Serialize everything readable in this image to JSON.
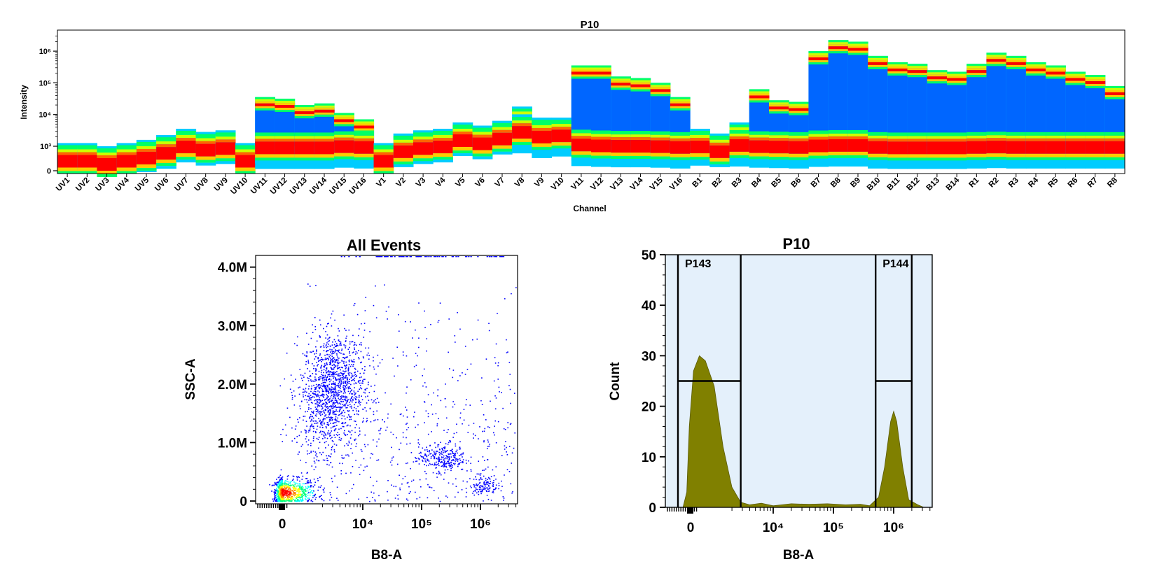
{
  "chart_data": [
    {
      "type": "heatmap",
      "title": "P10",
      "xlabel": "Channel",
      "ylabel": "Intensity",
      "y_ticks": [
        "0",
        "10³",
        "10⁴",
        "10⁵",
        "10⁶"
      ],
      "y_scale": "biexponential",
      "categories": [
        "UV1",
        "UV2",
        "UV3",
        "UV4",
        "UV5",
        "UV6",
        "UV7",
        "UV8",
        "UV9",
        "UV10",
        "UV11",
        "UV12",
        "UV13",
        "UV14",
        "UV15",
        "UV16",
        "V1",
        "V2",
        "V3",
        "V4",
        "V5",
        "V6",
        "V7",
        "V8",
        "V9",
        "V10",
        "V11",
        "V12",
        "V13",
        "V14",
        "V15",
        "V16",
        "B1",
        "B2",
        "B3",
        "B4",
        "B5",
        "B6",
        "B7",
        "B8",
        "B9",
        "B10",
        "B11",
        "B12",
        "B13",
        "B14",
        "R1",
        "R2",
        "R3",
        "R4",
        "R5",
        "R6",
        "R7",
        "R8"
      ],
      "peak_top_log10": [
        3.1,
        3.1,
        3.0,
        3.1,
        3.2,
        3.35,
        3.55,
        3.45,
        3.5,
        3.1,
        4.55,
        4.5,
        4.3,
        4.35,
        4.05,
        3.85,
        3.1,
        3.4,
        3.5,
        3.55,
        3.75,
        3.65,
        3.8,
        4.25,
        3.9,
        3.9,
        5.55,
        5.55,
        5.2,
        5.15,
        5.0,
        4.55,
        3.55,
        3.4,
        3.75,
        4.8,
        4.45,
        4.4,
        6.0,
        6.35,
        6.3,
        5.85,
        5.65,
        5.6,
        5.4,
        5.35,
        5.6,
        5.95,
        5.85,
        5.65,
        5.55,
        5.35,
        5.25,
        4.9
      ],
      "bright_top_log10": [
        2.9,
        2.9,
        2.8,
        2.9,
        3.0,
        3.15,
        3.35,
        3.25,
        3.3,
        2.9,
        4.4,
        4.35,
        4.15,
        4.2,
        3.85,
        3.65,
        2.9,
        3.25,
        3.35,
        3.4,
        3.6,
        3.5,
        3.65,
        4.05,
        3.75,
        3.75,
        5.4,
        5.4,
        5.05,
        5.0,
        4.8,
        4.35,
        3.4,
        3.25,
        3.55,
        4.6,
        4.25,
        4.2,
        5.85,
        6.2,
        6.15,
        5.7,
        5.5,
        5.45,
        5.25,
        5.2,
        5.45,
        5.8,
        5.7,
        5.5,
        5.4,
        5.2,
        5.1,
        4.75
      ],
      "population_level_log10": [
        null,
        null,
        null,
        null,
        null,
        null,
        null,
        null,
        null,
        null,
        3.0,
        3.0,
        3.0,
        3.0,
        3.1,
        3.1,
        null,
        null,
        null,
        null,
        null,
        null,
        null,
        null,
        null,
        null,
        3.2,
        3.1,
        3.0,
        3.0,
        3.0,
        3.1,
        null,
        null,
        null,
        3.05,
        3.0,
        3.0,
        3.2,
        3.3,
        3.3,
        3.1,
        3.05,
        3.05,
        3.0,
        3.0,
        3.05,
        3.1,
        3.05,
        3.05,
        3.05,
        3.05,
        3.05,
        3.05
      ],
      "dim_center_log10": [
        2.35,
        2.3,
        2.25,
        2.5,
        2.65,
        2.85,
        3.15,
        3.05,
        3.1,
        2.55,
        2.45,
        2.45,
        2.45,
        2.45,
        2.6,
        2.5,
        2.5,
        2.9,
        3.1,
        3.15,
        3.35,
        3.25,
        3.4,
        3.35,
        3.2,
        3.25,
        2.8,
        2.7,
        2.65,
        2.65,
        2.6,
        2.5,
        2.85,
        2.7,
        2.75,
        2.6,
        2.55,
        2.5,
        2.7,
        2.75,
        2.75,
        2.5,
        2.45,
        2.45,
        2.45,
        2.45,
        2.5,
        2.55,
        2.5,
        2.5,
        2.5,
        2.5,
        2.5,
        2.5
      ],
      "colormap": [
        "#0000ff",
        "#0066ff",
        "#00ccff",
        "#00ff66",
        "#ccff00",
        "#ffcc00",
        "#ff6600",
        "#ff0000"
      ]
    },
    {
      "type": "scatter",
      "title": "All Events",
      "xlabel": "B8-A",
      "ylabel": "SSC-A",
      "x_scale": "biexponential",
      "x_ticks": [
        "0",
        "10⁴",
        "10⁵",
        "10⁶"
      ],
      "y_ticks": [
        "0",
        "1.0M",
        "2.0M",
        "3.0M",
        "4.0M"
      ],
      "ylim": [
        0,
        4200000
      ],
      "populations": [
        {
          "name": "",
          "center_log10_x": 2.6,
          "center_y": 150000,
          "spread_x": 0.3,
          "spread_y": 120000,
          "count": 900,
          "density": "high"
        },
        {
          "name": "",
          "center_log10_x": 3.45,
          "center_y": 1900000,
          "spread_x": 0.28,
          "spread_y": 500000,
          "count": 1300,
          "density": "medium"
        },
        {
          "name": "",
          "center_log10_x": 5.35,
          "center_y": 750000,
          "spread_x": 0.2,
          "spread_y": 120000,
          "count": 260,
          "density": "low"
        },
        {
          "name": "",
          "center_log10_x": 6.05,
          "center_y": 280000,
          "spread_x": 0.12,
          "spread_y": 80000,
          "count": 120,
          "density": "low"
        },
        {
          "name": "",
          "center_log10_x": 4.6,
          "center_y": 1900000,
          "spread_x": 1.1,
          "spread_y": 1100000,
          "count": 550,
          "density": "sparse"
        }
      ],
      "point_color": "#0000ff"
    },
    {
      "type": "area",
      "title": "P10",
      "xlabel": "B8-A",
      "ylabel": "Count",
      "x_scale": "biexponential",
      "x_ticks": [
        "0",
        "10⁴",
        "10⁵",
        "10⁶"
      ],
      "y_ticks": [
        "0",
        "10",
        "20",
        "30",
        "40",
        "50"
      ],
      "ylim": [
        0,
        50
      ],
      "fill_color": "#808000",
      "background_color": "#e4f0fb",
      "histogram": [
        {
          "log10_x": 2.0,
          "count": 0
        },
        {
          "log10_x": 2.3,
          "count": 3
        },
        {
          "log10_x": 2.5,
          "count": 16
        },
        {
          "log10_x": 2.65,
          "count": 27
        },
        {
          "log10_x": 2.75,
          "count": 30
        },
        {
          "log10_x": 2.85,
          "count": 29
        },
        {
          "log10_x": 3.0,
          "count": 24
        },
        {
          "log10_x": 3.15,
          "count": 12
        },
        {
          "log10_x": 3.3,
          "count": 4
        },
        {
          "log10_x": 3.45,
          "count": 1
        },
        {
          "log10_x": 3.6,
          "count": 0.5
        },
        {
          "log10_x": 3.8,
          "count": 0.8
        },
        {
          "log10_x": 4.0,
          "count": 0.3
        },
        {
          "log10_x": 4.3,
          "count": 0.7
        },
        {
          "log10_x": 4.6,
          "count": 0.6
        },
        {
          "log10_x": 4.9,
          "count": 0.7
        },
        {
          "log10_x": 5.2,
          "count": 0.5
        },
        {
          "log10_x": 5.45,
          "count": 0.6
        },
        {
          "log10_x": 5.6,
          "count": 0.3
        },
        {
          "log10_x": 5.75,
          "count": 2
        },
        {
          "log10_x": 5.85,
          "count": 8
        },
        {
          "log10_x": 5.95,
          "count": 17
        },
        {
          "log10_x": 6.0,
          "count": 19
        },
        {
          "log10_x": 6.05,
          "count": 17
        },
        {
          "log10_x": 6.15,
          "count": 8
        },
        {
          "log10_x": 6.25,
          "count": 1.5
        },
        {
          "log10_x": 6.4,
          "count": 0.5
        },
        {
          "log10_x": 6.5,
          "count": 0
        }
      ],
      "gates": [
        {
          "name": "P143",
          "from_log10": 1.5,
          "to_log10": 3.45,
          "level": 25
        },
        {
          "name": "P144",
          "from_log10": 5.7,
          "to_log10": 6.3,
          "level": 25
        }
      ]
    }
  ]
}
